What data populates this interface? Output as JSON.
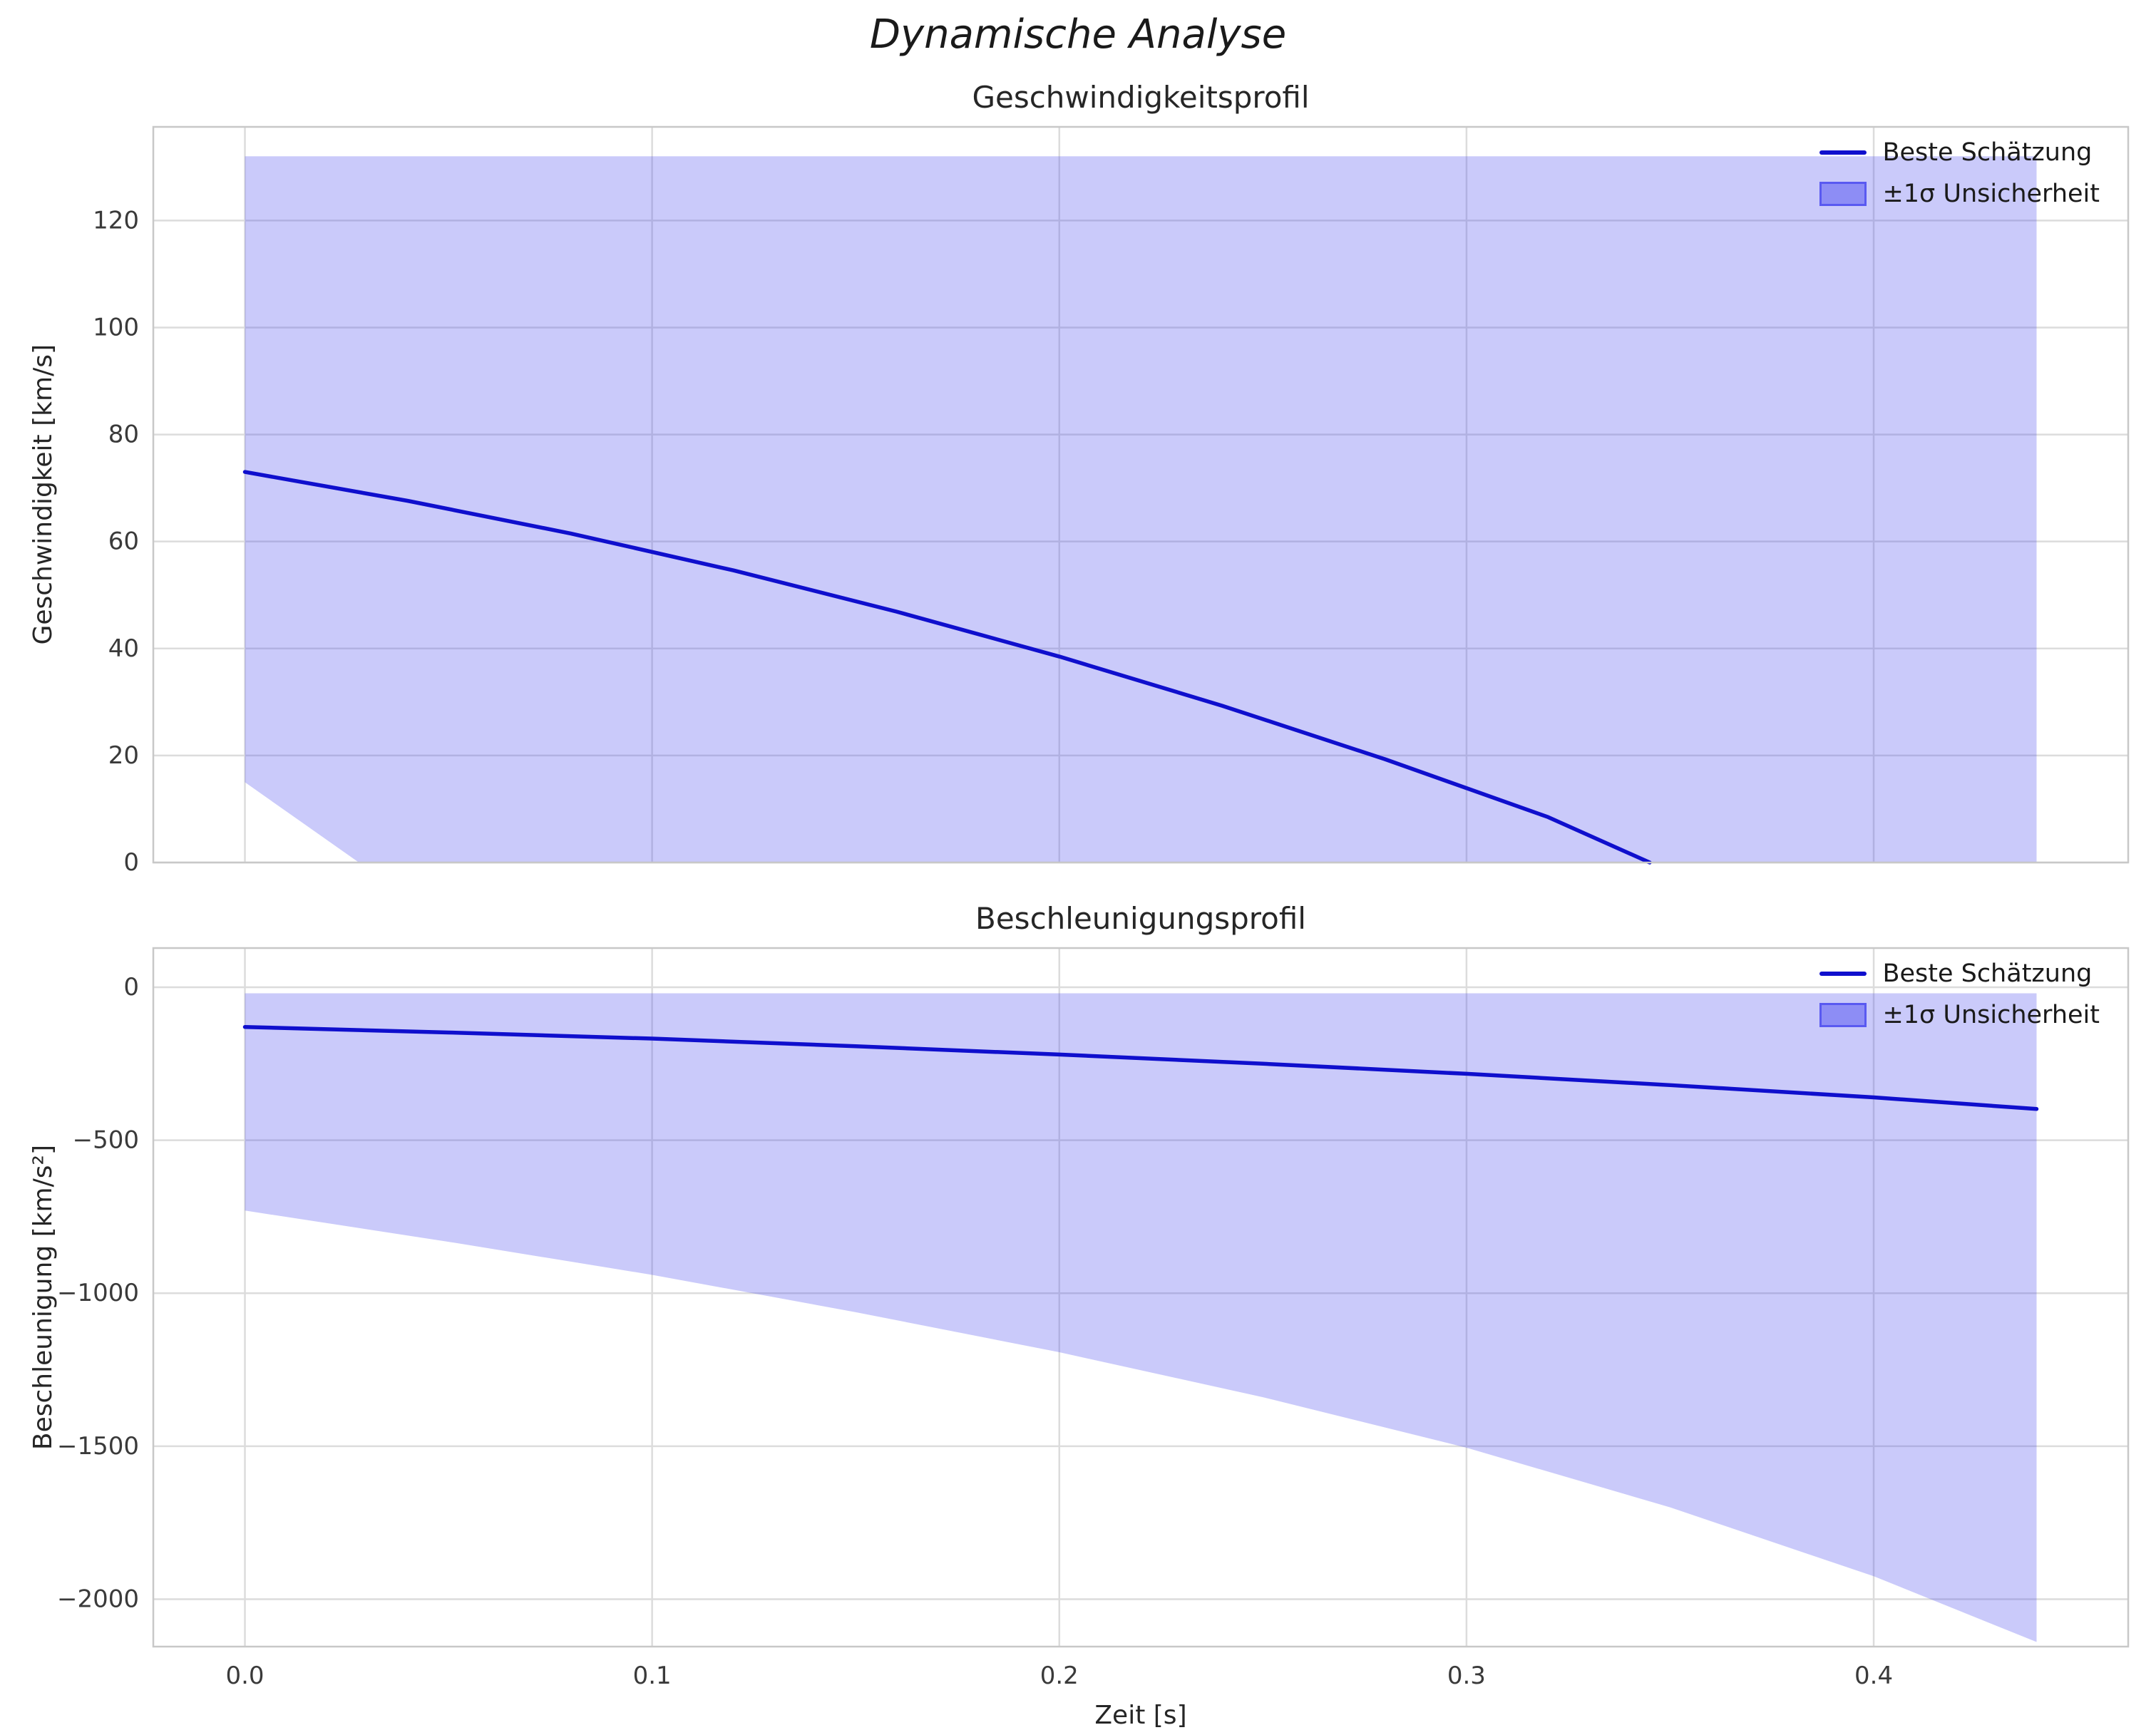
{
  "figure": {
    "title": "Dynamische Analyse",
    "xlabel": "Zeit [s]"
  },
  "colors": {
    "line": "#0f0fcd",
    "band": "#5050f0",
    "band_opacity": 0.3,
    "legend_patch_opacity": 0.5,
    "grid": "#dcdcdc",
    "spine": "#c8c8c8",
    "tick_text": "#3a3a3a",
    "title_text": "#262626"
  },
  "chart_data": [
    {
      "type": "line",
      "title": "Geschwindigkeitsprofil",
      "ylabel": "Geschwindigkeit [km/s]",
      "xlim": [
        -0.0225,
        0.4625
      ],
      "ylim": [
        0,
        137.5
      ],
      "xticks": [
        0.0,
        0.1,
        0.2,
        0.3,
        0.4
      ],
      "xtick_labels": [
        "0.0",
        "0.1",
        "0.2",
        "0.3",
        "0.4"
      ],
      "show_xtick_labels": false,
      "yticks": [
        0,
        20,
        40,
        60,
        80,
        100,
        120
      ],
      "ytick_labels": [
        "0",
        "20",
        "40",
        "60",
        "80",
        "100",
        "120"
      ],
      "grid": true,
      "legend_position": "upper right",
      "series": [
        {
          "name": "Beste Schätzung",
          "x": [
            0.0,
            0.04,
            0.08,
            0.12,
            0.16,
            0.2,
            0.24,
            0.28,
            0.32,
            0.345
          ],
          "y": [
            73.0,
            67.6,
            61.5,
            54.6,
            46.9,
            38.5,
            29.3,
            19.3,
            8.5,
            0.0
          ]
        }
      ],
      "band": {
        "name": "±1σ Unsicherheit",
        "x": [
          0.0,
          0.028,
          0.1,
          0.2,
          0.3,
          0.4,
          0.44
        ],
        "upper": [
          132,
          132,
          132,
          132,
          132,
          132,
          132
        ],
        "lower": [
          15,
          0,
          0,
          0,
          0,
          0,
          0
        ]
      },
      "legend_entries": [
        {
          "label": "Beste Schätzung",
          "swatch": "line"
        },
        {
          "label": "±1σ Unsicherheit",
          "swatch": "patch"
        }
      ]
    },
    {
      "type": "line",
      "title": "Beschleunigungsprofil",
      "ylabel": "Beschleunigung [km/s²]",
      "xlim": [
        -0.0225,
        0.4625
      ],
      "ylim": [
        -2155,
        128
      ],
      "xticks": [
        0.0,
        0.1,
        0.2,
        0.3,
        0.4
      ],
      "xtick_labels": [
        "0.0",
        "0.1",
        "0.2",
        "0.3",
        "0.4"
      ],
      "show_xtick_labels": true,
      "yticks": [
        0,
        -500,
        -1000,
        -1500,
        -2000
      ],
      "ytick_labels": [
        "0",
        "−500",
        "−1000",
        "−1500",
        "−2000"
      ],
      "grid": true,
      "legend_position": "upper right",
      "series": [
        {
          "name": "Beste Schätzung",
          "x": [
            0.0,
            0.05,
            0.1,
            0.15,
            0.2,
            0.25,
            0.3,
            0.35,
            0.4,
            0.44
          ],
          "y": [
            -130,
            -148,
            -168,
            -193,
            -220,
            -250,
            -283,
            -320,
            -360,
            -398
          ]
        }
      ],
      "band": {
        "name": "±1σ Unsicherheit",
        "x": [
          0.0,
          0.05,
          0.1,
          0.15,
          0.2,
          0.25,
          0.3,
          0.35,
          0.4,
          0.44
        ],
        "upper": [
          -20,
          -20,
          -20,
          -20,
          -20,
          -20,
          -20,
          -20,
          -20,
          -20
        ],
        "lower": [
          -730,
          -832,
          -940,
          -1062,
          -1193,
          -1340,
          -1505,
          -1700,
          -1925,
          -2140
        ]
      },
      "legend_entries": [
        {
          "label": "Beste Schätzung",
          "swatch": "line"
        },
        {
          "label": "±1σ Unsicherheit",
          "swatch": "patch"
        }
      ]
    }
  ]
}
